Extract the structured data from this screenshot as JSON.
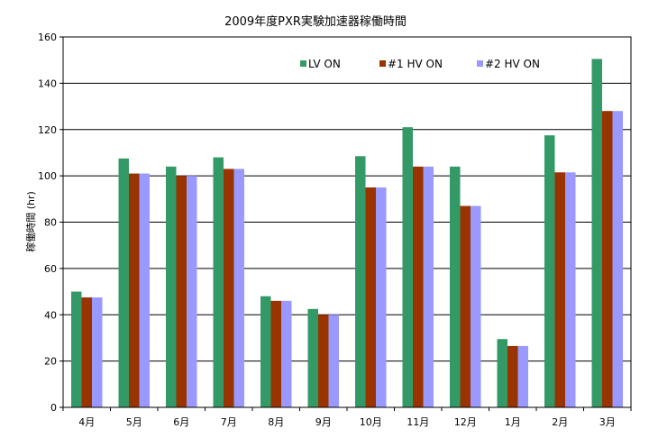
{
  "chart_data": {
    "type": "bar",
    "title": "2009年度PXR実験加速器稼働時間",
    "xlabel": "",
    "ylabel": "稼働時間 (hr)",
    "categories": [
      "4月",
      "5月",
      "6月",
      "7月",
      "8月",
      "9月",
      "10月",
      "11月",
      "12月",
      "1月",
      "2月",
      "3月"
    ],
    "series": [
      {
        "name": "LV ON",
        "color": "#339966",
        "values": [
          50,
          107.5,
          104,
          108,
          48,
          42.5,
          108.5,
          121,
          104,
          29.5,
          117.5,
          150.5
        ]
      },
      {
        "name": "#1  HV ON",
        "color": "#993300",
        "values": [
          47.5,
          101,
          100,
          103,
          46,
          40,
          95,
          104,
          87,
          26.5,
          101.5,
          128
        ]
      },
      {
        "name": "#2  HV ON",
        "color": "#9999ff",
        "values": [
          47.5,
          101,
          100,
          103,
          46,
          40,
          95,
          104,
          87,
          26.5,
          101.5,
          128
        ]
      }
    ],
    "ylim": [
      0,
      160
    ],
    "yticks": [
      0,
      20,
      40,
      60,
      80,
      100,
      120,
      140,
      160
    ],
    "grid": true,
    "legend": "top-right"
  }
}
